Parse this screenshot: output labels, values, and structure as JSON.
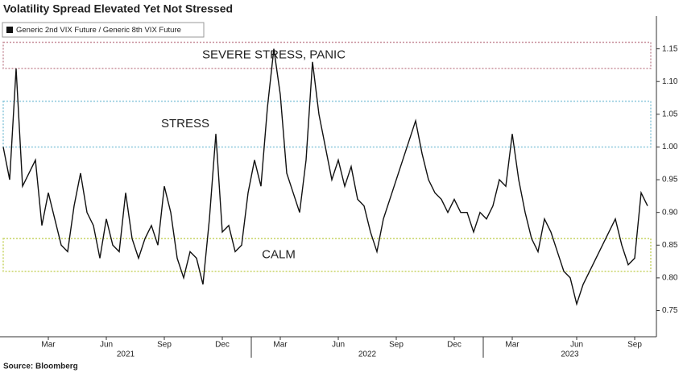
{
  "chart_data": {
    "type": "line",
    "title": "Volatility Spread Elevated Yet Not Stressed",
    "source": "Source: Bloomberg",
    "categories": [
      null,
      null,
      null,
      null,
      null,
      null,
      null,
      "Mar",
      null,
      null,
      null,
      null,
      null,
      null,
      null,
      null,
      "Jun",
      null,
      null,
      null,
      null,
      null,
      null,
      null,
      null,
      "Sep",
      null,
      null,
      null,
      null,
      null,
      null,
      null,
      null,
      "Dec",
      null,
      null,
      null,
      null,
      null,
      null,
      null,
      null,
      "Mar",
      null,
      null,
      null,
      null,
      null,
      null,
      null,
      null,
      "Jun",
      null,
      null,
      null,
      null,
      null,
      null,
      null,
      null,
      "Sep",
      null,
      null,
      null,
      null,
      null,
      null,
      null,
      null,
      "Dec",
      null,
      null,
      null,
      null,
      null,
      null,
      null,
      null,
      "Mar",
      null,
      null,
      null,
      null,
      null,
      null,
      null,
      null,
      null,
      "Jun",
      null,
      null,
      null,
      null,
      null,
      null,
      null,
      null,
      "Sep",
      null,
      null
    ],
    "years": [
      "2021",
      "2022",
      "2023"
    ],
    "series": [
      {
        "name": "Generic 2nd VIX Future / Generic 8th VIX Future",
        "color": "#111111",
        "values": [
          1.0,
          0.95,
          1.12,
          0.94,
          0.96,
          0.98,
          0.88,
          0.93,
          0.89,
          0.85,
          0.84,
          0.91,
          0.96,
          0.9,
          0.88,
          0.83,
          0.89,
          0.85,
          0.84,
          0.93,
          0.86,
          0.83,
          0.86,
          0.88,
          0.85,
          0.94,
          0.9,
          0.83,
          0.8,
          0.84,
          0.83,
          0.79,
          0.89,
          1.02,
          0.87,
          0.88,
          0.84,
          0.85,
          0.93,
          0.98,
          0.94,
          1.06,
          1.15,
          1.08,
          0.96,
          0.93,
          0.9,
          0.98,
          1.13,
          1.05,
          1.0,
          0.95,
          0.98,
          0.94,
          0.97,
          0.92,
          0.91,
          0.87,
          0.84,
          0.89,
          0.92,
          0.95,
          0.98,
          1.01,
          1.04,
          0.99,
          0.95,
          0.93,
          0.92,
          0.9,
          0.92,
          0.9,
          0.9,
          0.87,
          0.9,
          0.89,
          0.91,
          0.95,
          0.94,
          1.02,
          0.95,
          0.9,
          0.86,
          0.84,
          0.89,
          0.87,
          0.84,
          0.81,
          0.8,
          0.76,
          0.79,
          0.81,
          0.83,
          0.85,
          0.87,
          0.89,
          0.85,
          0.82,
          0.83,
          0.93,
          0.91
        ]
      }
    ],
    "bands": [
      {
        "label": "SEVERE STRESS, PANIC",
        "from": 1.12,
        "to": 1.16,
        "color": "#c8909c"
      },
      {
        "label": "STRESS",
        "from": 1.0,
        "to": 1.07,
        "color": "#8cc8dc"
      },
      {
        "label": "CALM",
        "from": 0.81,
        "to": 0.86,
        "color": "#c8d464"
      }
    ],
    "ylim": [
      0.71,
      1.2
    ],
    "yticks": [
      0.75,
      {
        "value": 0.8,
        "label": "0.80"
      },
      0.85,
      {
        "value": 0.9,
        "label": "0.90"
      },
      0.95,
      {
        "value": 1.0,
        "label": "1.00"
      },
      1.05,
      {
        "value": 1.1,
        "label": "1.10"
      },
      1.15
    ],
    "legend": "top-left"
  }
}
